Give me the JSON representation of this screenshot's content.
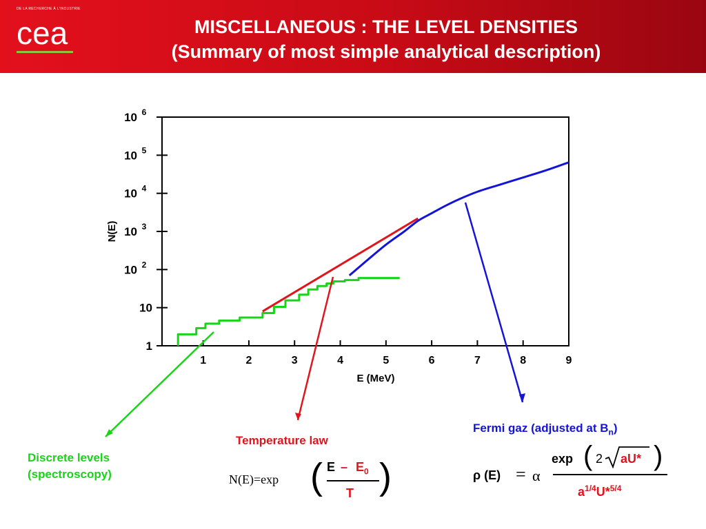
{
  "header": {
    "logo_small_text": "DE LA RECHERCHE À L'INDUSTRIE",
    "logo_name": "cea",
    "title_line1": "MISCELLANEOUS : THE LEVEL DENSITIES",
    "title_line2": "(Summary of most simple analytical description)"
  },
  "colors": {
    "header_red": "#e3101c",
    "logo_green": "#8cc63e",
    "discrete": "#18d418",
    "temperature": "#e0141c",
    "fermi": "#1414d8"
  },
  "chart_data": {
    "type": "line",
    "xlabel": "E (MeV)",
    "ylabel": "N(E)",
    "xlim": [
      0.1,
      9
    ],
    "ylim": [
      1,
      1000000
    ],
    "y_scale": "log",
    "x_ticks": [
      1,
      2,
      3,
      4,
      5,
      6,
      7,
      8,
      9
    ],
    "y_ticks": [
      {
        "value": 1,
        "base": "1",
        "exp": ""
      },
      {
        "value": 10,
        "base": "10",
        "exp": ""
      },
      {
        "value": 100,
        "base": "10",
        "exp": "2"
      },
      {
        "value": 1000,
        "base": "10",
        "exp": "3"
      },
      {
        "value": 10000,
        "base": "10",
        "exp": "4"
      },
      {
        "value": 100000,
        "base": "10",
        "exp": "5"
      },
      {
        "value": 1000000,
        "base": "10",
        "exp": "6"
      }
    ],
    "grid": false,
    "series": [
      {
        "key": "discrete",
        "color": "#18d418",
        "style": "step",
        "x": [
          0.45,
          0.45,
          0.85,
          0.85,
          1.05,
          1.05,
          1.35,
          1.35,
          1.8,
          1.8,
          2.3,
          2.3,
          2.55,
          2.55,
          2.8,
          2.8,
          3.1,
          3.1,
          3.3,
          3.3,
          3.5,
          3.5,
          3.7,
          3.7,
          3.85,
          3.85,
          4.1,
          4.1,
          4.4,
          4.4,
          5.3
        ],
        "y": [
          1,
          2,
          2,
          2.9,
          2.9,
          3.8,
          3.8,
          4.6,
          4.6,
          5.5,
          5.5,
          7.2,
          7.2,
          10.5,
          10.5,
          15.5,
          15.5,
          22,
          22,
          30,
          30,
          37,
          37,
          43,
          43,
          49,
          49,
          53,
          53,
          60,
          60
        ]
      },
      {
        "key": "temperature",
        "color": "#e0141c",
        "style": "line",
        "x": [
          2.3,
          5.7
        ],
        "y": [
          8.0,
          2200
        ]
      },
      {
        "key": "fermi",
        "color": "#1414d8",
        "style": "line",
        "x": [
          4.2,
          4.6,
          5.0,
          5.4,
          5.7,
          6.0,
          6.3,
          6.6,
          7.0,
          7.5,
          8.0,
          8.5,
          9.0
        ],
        "y": [
          70,
          180,
          450,
          1000,
          1900,
          3000,
          4700,
          7000,
          11000,
          17000,
          26000,
          40000,
          65000
        ]
      }
    ]
  },
  "annotations": {
    "discrete": {
      "line1": "Discrete levels",
      "line2": "(spectroscopy)"
    },
    "temperature": {
      "label": "Temperature law",
      "lhs": "N(E)=exp",
      "num_e": "E",
      "num_minus": "–",
      "num_e0": "E",
      "num_e0_sub": "0",
      "den": "T"
    },
    "fermi": {
      "label": "Fermi gaz (adjusted at B",
      "label_sub": "n",
      "label_close": ")",
      "lhs": "ρ (E)",
      "eq": "=",
      "alpha": "α",
      "num_exp": "exp",
      "num_two": "2",
      "num_au": "aU*",
      "den_a": "a",
      "den_a_exp": "1/4",
      "den_u": "U*",
      "den_u_exp": "5/4"
    }
  }
}
